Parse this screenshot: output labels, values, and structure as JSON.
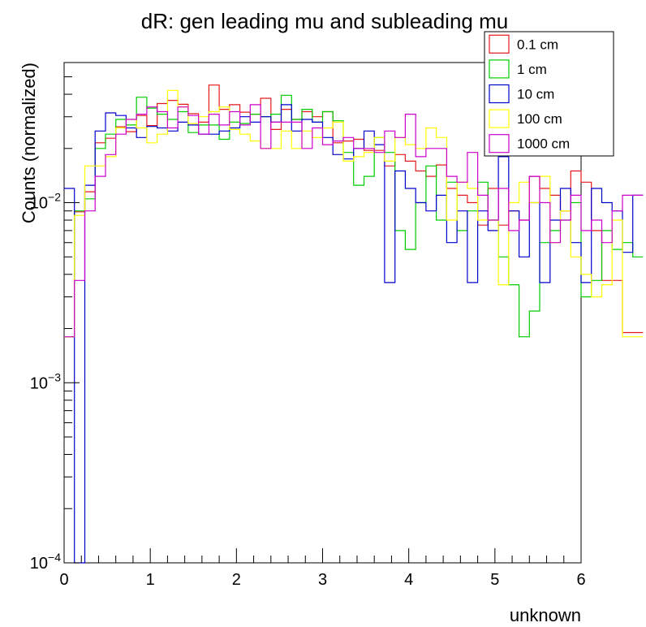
{
  "chart_data": {
    "type": "histogram",
    "title": "dR: gen leading mu and subleading mu",
    "xlabel": "unknown",
    "ylabel": "Counts (normalized)",
    "xlim": [
      0,
      6
    ],
    "ylim": [
      0.0001,
      0.06
    ],
    "y_scale": "log",
    "x_ticks": [
      "0",
      "1",
      "2",
      "3",
      "4",
      "5",
      "6"
    ],
    "y_ticks": [
      {
        "value": 0.0001,
        "base": "10",
        "exp": "−4"
      },
      {
        "value": 0.001,
        "base": "10",
        "exp": "−3"
      },
      {
        "value": 0.01,
        "base": "10",
        "exp": "−2"
      }
    ],
    "legend_position": "top-right",
    "bin_width": 0.12,
    "series": [
      {
        "name": "0.1 cm",
        "color": "#e41a1c",
        "values": [
          0.0018,
          0.0089,
          0.0115,
          0.0215,
          0.0228,
          0.0264,
          0.0248,
          0.0305,
          0.0268,
          0.0355,
          0.037,
          0.0352,
          0.0312,
          0.028,
          0.045,
          0.033,
          0.035,
          0.0318,
          0.031,
          0.038,
          0.0255,
          0.033,
          0.029,
          0.032,
          0.03,
          0.032,
          0.0215,
          0.022,
          0.0225,
          0.0195,
          0.0195,
          0.016,
          0.0185,
          0.017,
          0.015,
          0.014,
          0.0162,
          0.012,
          0.011,
          0.01,
          0.0075,
          0.012,
          0.0075,
          0.009,
          0.008,
          0.014,
          0.012,
          0.011,
          0.009,
          0.015,
          0.013,
          0.007,
          0.0037,
          0.0037,
          0.0019,
          0.0019
        ]
      },
      {
        "name": "1 cm",
        "color": "#00cc00",
        "values": [
          0.0018,
          0.009,
          0.0105,
          0.02,
          0.024,
          0.029,
          0.027,
          0.0385,
          0.0335,
          0.031,
          0.029,
          0.032,
          0.0245,
          0.027,
          0.027,
          0.0225,
          0.028,
          0.0275,
          0.031,
          0.03,
          0.031,
          0.0395,
          0.029,
          0.033,
          0.028,
          0.032,
          0.0285,
          0.019,
          0.0125,
          0.014,
          0.023,
          0.019,
          0.007,
          0.0055,
          0.01,
          0.016,
          0.008,
          0.013,
          0.007,
          0.009,
          0.013,
          0.008,
          0.005,
          0.0035,
          0.0018,
          0.0025,
          0.006,
          0.007,
          0.008,
          0.01,
          0.003,
          0.0037,
          0.007,
          0.0055,
          0.006,
          0.005
        ]
      },
      {
        "name": "10 cm",
        "color": "#0000cc",
        "values": [
          0.012,
          0.0001,
          0.0125,
          0.025,
          0.0315,
          0.0305,
          0.026,
          0.023,
          0.0265,
          0.026,
          0.025,
          0.028,
          0.027,
          0.024,
          0.024,
          0.025,
          0.026,
          0.03,
          0.028,
          0.03,
          0.028,
          0.035,
          0.025,
          0.029,
          0.028,
          0.023,
          0.0185,
          0.0175,
          0.02,
          0.025,
          0.021,
          0.0036,
          0.015,
          0.012,
          0.01,
          0.009,
          0.011,
          0.006,
          0.009,
          0.0036,
          0.009,
          0.007,
          0.018,
          0.009,
          0.005,
          0.01,
          0.0036,
          0.008,
          0.012,
          0.006,
          0.0036,
          0.012,
          0.01,
          0.009,
          0.0053,
          0.011
        ]
      },
      {
        "name": "100 cm",
        "color": "#ffff00",
        "values": [
          0.0018,
          0.0085,
          0.016,
          0.016,
          0.018,
          0.026,
          0.029,
          0.026,
          0.0215,
          0.024,
          0.042,
          0.034,
          0.0275,
          0.03,
          0.032,
          0.034,
          0.0255,
          0.024,
          0.022,
          0.02,
          0.02,
          0.025,
          0.02,
          0.025,
          0.023,
          0.026,
          0.028,
          0.017,
          0.018,
          0.019,
          0.023,
          0.017,
          0.023,
          0.021,
          0.02,
          0.026,
          0.023,
          0.008,
          0.013,
          0.012,
          0.008,
          0.008,
          0.0035,
          0.01,
          0.013,
          0.01,
          0.014,
          0.006,
          0.009,
          0.005,
          0.004,
          0.003,
          0.0035,
          0.008,
          0.0018,
          0.0018
        ]
      },
      {
        "name": "1000 cm",
        "color": "#cc00cc",
        "values": [
          0.0018,
          0.0037,
          0.009,
          0.014,
          0.0185,
          0.024,
          0.029,
          0.031,
          0.034,
          0.032,
          0.026,
          0.034,
          0.0305,
          0.024,
          0.031,
          0.027,
          0.032,
          0.027,
          0.035,
          0.02,
          0.028,
          0.028,
          0.028,
          0.02,
          0.026,
          0.021,
          0.022,
          0.023,
          0.02,
          0.02,
          0.019,
          0.025,
          0.023,
          0.031,
          0.018,
          0.02,
          0.02,
          0.014,
          0.013,
          0.019,
          0.011,
          0.008,
          0.012,
          0.007,
          0.008,
          0.014,
          0.01,
          0.006,
          0.008,
          0.011,
          0.007,
          0.008,
          0.006,
          0.009,
          0.011,
          0.011
        ]
      }
    ]
  }
}
